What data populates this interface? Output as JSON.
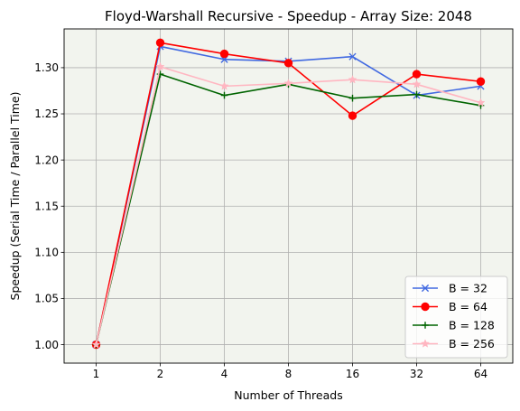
{
  "chart_data": {
    "type": "line",
    "title": "Floyd-Warshall Recursive - Speedup - Array Size: 2048",
    "xlabel": "Number of Threads",
    "ylabel": "Speedup (Serial Time / Parallel Time)",
    "categories": [
      "1",
      "2",
      "4",
      "8",
      "16",
      "32",
      "64"
    ],
    "ylim": [
      0.98,
      1.342
    ],
    "yticks": [
      "1.00",
      "1.05",
      "1.10",
      "1.15",
      "1.20",
      "1.25",
      "1.30"
    ],
    "grid": true,
    "legend_position": "lower-right",
    "background": "#f2f4ee",
    "series": [
      {
        "name": "B = 32",
        "color": "#4169e1",
        "marker": "x",
        "values": [
          1.0,
          1.323,
          1.309,
          1.307,
          1.312,
          1.27,
          1.28
        ]
      },
      {
        "name": "B = 64",
        "color": "#ff0000",
        "marker": "circle",
        "values": [
          1.0,
          1.327,
          1.315,
          1.305,
          1.248,
          1.293,
          1.285
        ]
      },
      {
        "name": "B = 128",
        "color": "#006400",
        "marker": "plus",
        "values": [
          1.0,
          1.293,
          1.27,
          1.282,
          1.267,
          1.271,
          1.259
        ]
      },
      {
        "name": "B = 256",
        "color": "#ffb6c1",
        "marker": "star",
        "values": [
          1.0,
          1.301,
          1.28,
          1.283,
          1.287,
          1.282,
          1.262
        ]
      }
    ]
  }
}
